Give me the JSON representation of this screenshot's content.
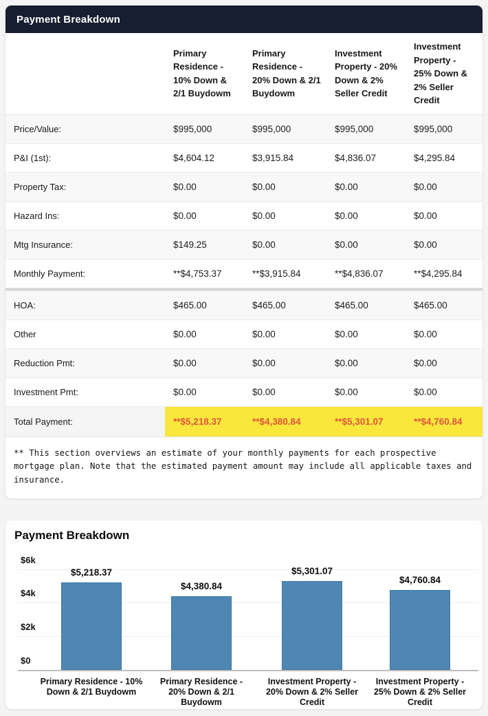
{
  "colors": {
    "header_bg": "#171e30",
    "header_text": "#ffffff",
    "highlight_yellow": "#f9e73b",
    "total_value_text": "#e0543c",
    "bar_fill": "#4e87b4",
    "bar_border": "#41749e",
    "stripe": "#f8f8f9"
  },
  "table_card": {
    "header_title": "Payment Breakdown",
    "columns": [
      "Primary Residence - 10% Down & 2/1 Buydowm",
      "Primary Residence - 20% Down & 2/1 Buydowm",
      "Investment Property - 20% Down & 2% Seller Credit",
      "Investment Property - 25% Down & 2% Seller Credit"
    ],
    "rows": [
      {
        "label": "Price/Value:",
        "values": [
          "$995,000",
          "$995,000",
          "$995,000",
          "$995,000"
        ]
      },
      {
        "label": "P&I (1st):",
        "values": [
          "$4,604.12",
          "$3,915.84",
          "$4,836.07",
          "$4,295.84"
        ]
      },
      {
        "label": "Property Tax:",
        "values": [
          "$0.00",
          "$0.00",
          "$0.00",
          "$0.00"
        ]
      },
      {
        "label": "Hazard Ins:",
        "values": [
          "$0.00",
          "$0.00",
          "$0.00",
          "$0.00"
        ]
      },
      {
        "label": "Mtg Insurance:",
        "values": [
          "$149.25",
          "$0.00",
          "$0.00",
          "$0.00"
        ]
      },
      {
        "label": "Monthly Payment:",
        "values": [
          "**$4,753.37",
          "**$3,915.84",
          "**$4,836.07",
          "**$4,295.84"
        ],
        "divider_after": true
      },
      {
        "label": "HOA:",
        "values": [
          "$465.00",
          "$465.00",
          "$465.00",
          "$465.00"
        ]
      },
      {
        "label": "Other",
        "values": [
          "$0.00",
          "$0.00",
          "$0.00",
          "$0.00"
        ]
      },
      {
        "label": "Reduction Pmt:",
        "values": [
          "$0.00",
          "$0.00",
          "$0.00",
          "$0.00"
        ]
      },
      {
        "label": "Investment Pmt:",
        "values": [
          "$0.00",
          "$0.00",
          "$0.00",
          "$0.00"
        ]
      }
    ],
    "total_row": {
      "label": "Total Payment:",
      "values": [
        "**$5,218.37",
        "**$4,380.84",
        "**$5,301.07",
        "**$4,760.84"
      ]
    },
    "footnote": "** This section overviews an estimate of your monthly payments for each prospective mortgage plan. Note that the estimated payment amount may include all applicable taxes and insurance."
  },
  "chart_card": {
    "title": "Payment Breakdown"
  },
  "chart_data": {
    "type": "bar",
    "title": "Payment Breakdown",
    "categories": [
      "Primary Residence - 10% Down & 2/1 Buydowm",
      "Primary Residence - 20% Down & 2/1 Buydowm",
      "Investment Property - 20% Down & 2% Seller Credit",
      "Investment Property - 25% Down & 2% Seller Credit"
    ],
    "values": [
      5218.37,
      4380.84,
      5301.07,
      4760.84
    ],
    "value_labels": [
      "$5,218.37",
      "$4,380.84",
      "$5,301.07",
      "$4,760.84"
    ],
    "xlabel": "",
    "ylabel": "",
    "ylim": [
      0,
      6000
    ],
    "yticks": [
      {
        "label": "$0",
        "value": 0
      },
      {
        "label": "$2k",
        "value": 2000
      },
      {
        "label": "$4k",
        "value": 4000
      },
      {
        "label": "$6k",
        "value": 6000
      }
    ],
    "grid": true,
    "legend": false,
    "bar_color": "#4e87b4"
  }
}
